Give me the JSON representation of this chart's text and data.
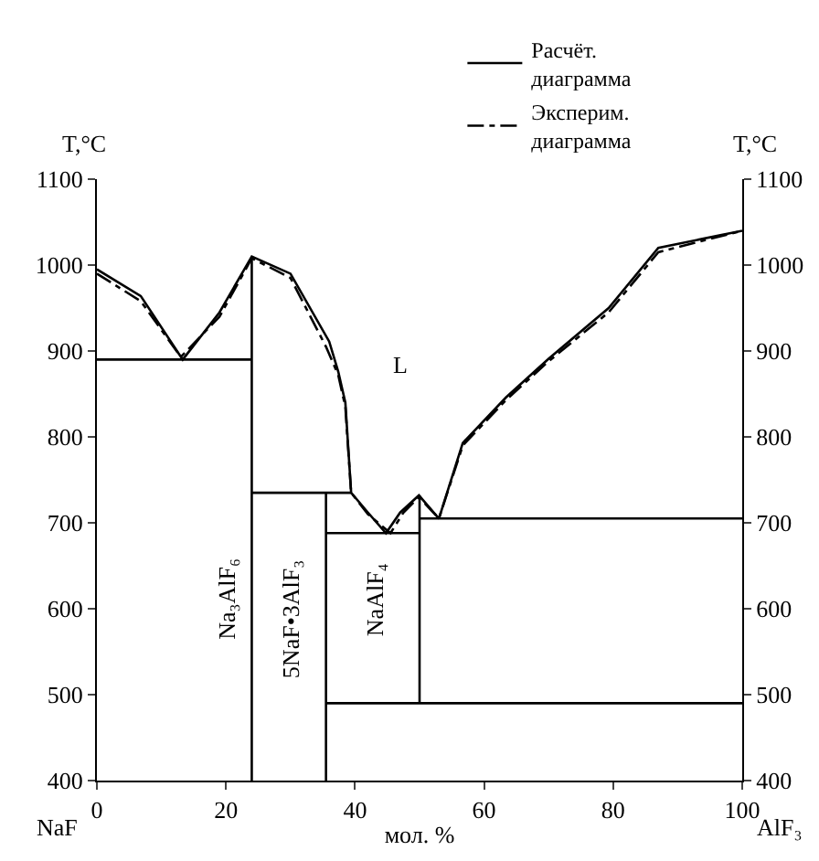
{
  "chart_data": {
    "type": "line",
    "xlabel": "мол. %",
    "ylabel": "T,°C",
    "y2label": "T,°C",
    "xlim": [
      0,
      100
    ],
    "xticks": [
      0,
      20,
      40,
      60,
      80,
      100
    ],
    "ylim": [
      400,
      1100
    ],
    "yticks": [
      400,
      500,
      600,
      700,
      800,
      900,
      1000,
      1100
    ],
    "y2lim": [
      400,
      1100
    ],
    "y2ticks": [
      400,
      500,
      600,
      700,
      800,
      900,
      1000,
      1100
    ],
    "legend": "top right",
    "grid": false,
    "marker": "none",
    "series": [
      {
        "name": "Расчёт. диаграмма",
        "color": "#000000",
        "line_style": "solid",
        "x": [
          0,
          6.8,
          13.3,
          19,
          24,
          30,
          36,
          37.4,
          38.5,
          39.4,
          42,
          44.8,
          47,
          49.9,
          53,
          56.7,
          63.4,
          70,
          79.3,
          87,
          100
        ],
        "values": [
          995,
          964,
          890,
          945,
          1010,
          990,
          911,
          876,
          840,
          735,
          712,
          688,
          712,
          732,
          705,
          793,
          846,
          891,
          950,
          1020,
          1040
        ]
      },
      {
        "name": "Эксперим. диаграмма",
        "color": "#000000",
        "line_style": "dashed",
        "x": [
          0,
          6.8,
          13,
          19,
          24,
          30,
          35.5,
          37.4,
          38.5,
          39.4,
          42,
          45.5,
          47.5,
          49.9,
          53,
          56.7,
          63.4,
          70,
          79.3,
          87,
          100
        ],
        "values": [
          990,
          958,
          893,
          940,
          1008,
          985,
          905,
          872,
          835,
          735,
          710,
          688,
          712,
          730,
          705,
          790,
          843,
          888,
          945,
          1015,
          1040
        ]
      },
      {
        "color": "#000000",
        "line_style": "solid",
        "x": [
          0,
          24,
          null,
          24,
          24,
          null,
          24,
          39.4,
          null,
          35.5,
          35.5,
          null,
          35.5,
          50,
          null,
          50,
          50,
          null,
          50,
          100,
          null,
          35.5,
          100
        ],
        "values": [
          890,
          890,
          null,
          400,
          1010,
          null,
          735,
          735,
          null,
          400,
          735,
          null,
          688,
          688,
          null,
          490,
          732,
          null,
          705,
          705,
          null,
          490,
          490
        ]
      }
    ],
    "annotations": [
      "NaF",
      "AlF₃",
      "L",
      "Na₃AlF₆",
      "5NaF•3AlF₃",
      "NaAlF₄"
    ]
  }
}
